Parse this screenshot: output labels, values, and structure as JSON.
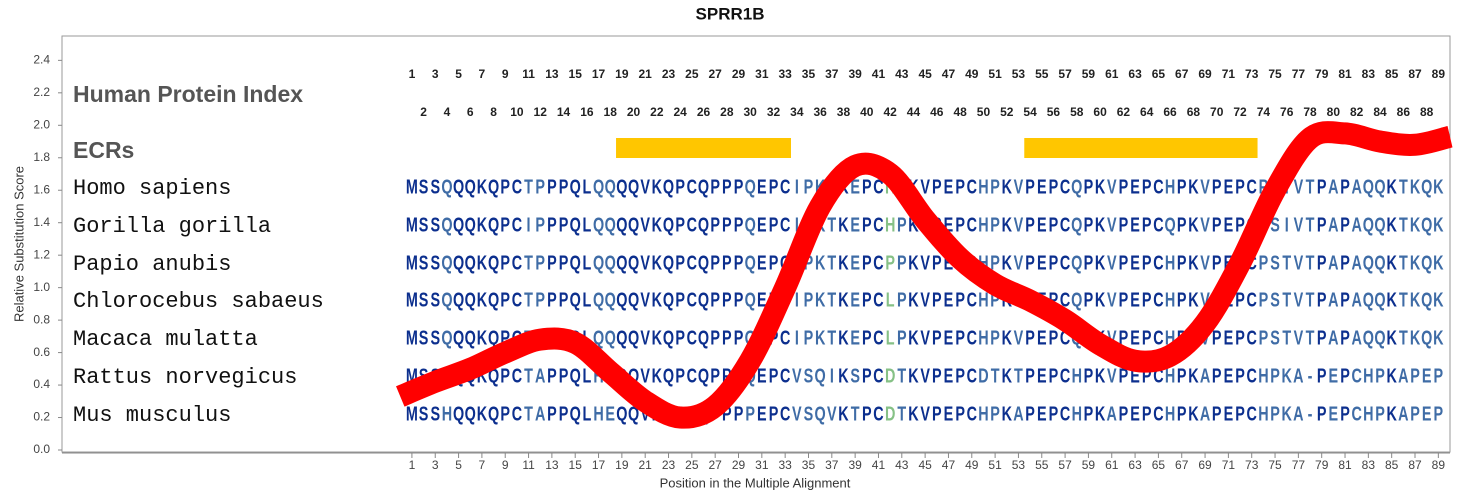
{
  "chart_data": {
    "type": "line",
    "title": "SPRR1B",
    "xlabel": "Position in the Multiple Alignment",
    "ylabel": "Relative Substitution Score",
    "x": [
      0,
      3,
      6,
      9,
      12,
      15,
      18,
      21,
      24,
      27,
      30,
      33,
      36,
      39,
      42,
      45,
      48,
      51,
      54,
      57,
      60,
      63,
      66,
      69,
      72,
      75,
      78,
      81,
      84,
      87,
      90
    ],
    "values": [
      0.33,
      0.42,
      0.5,
      0.6,
      0.68,
      0.66,
      0.48,
      0.3,
      0.2,
      0.27,
      0.55,
      1.0,
      1.5,
      1.75,
      1.7,
      1.42,
      1.18,
      1.02,
      0.92,
      0.8,
      0.65,
      0.55,
      0.58,
      0.78,
      1.15,
      1.6,
      1.92,
      1.95,
      1.9,
      1.88,
      1.93
    ],
    "color": "#ff0000",
    "xlim": [
      -29,
      90
    ],
    "ylim": [
      0,
      2.55
    ],
    "xticks": [
      1,
      3,
      5,
      7,
      9,
      11,
      13,
      15,
      17,
      19,
      21,
      23,
      25,
      27,
      29,
      31,
      33,
      35,
      37,
      39,
      41,
      43,
      45,
      47,
      49,
      51,
      53,
      55,
      57,
      59,
      61,
      63,
      65,
      67,
      69,
      71,
      73,
      75,
      77,
      79,
      81,
      83,
      85,
      87,
      89
    ],
    "yticks": [
      {
        "value": 0,
        "label": "0.0"
      },
      0.2,
      0.4,
      0.6,
      0.8,
      {
        "value": 1,
        "label": "1.0"
      },
      1.2,
      1.4,
      1.6,
      1.8,
      {
        "value": 2,
        "label": "2.0"
      },
      2.2,
      2.4
    ],
    "human_protein_index": {
      "label": "Human Protein Index",
      "values": [
        1,
        2,
        3,
        4,
        5,
        6,
        7,
        8,
        9,
        10,
        11,
        12,
        13,
        14,
        15,
        16,
        17,
        18,
        19,
        20,
        21,
        22,
        23,
        24,
        25,
        26,
        27,
        28,
        29,
        30,
        31,
        32,
        33,
        34,
        35,
        36,
        37,
        38,
        39,
        40,
        41,
        42,
        43,
        44,
        45,
        46,
        47,
        48,
        49,
        50,
        51,
        52,
        53,
        54,
        55,
        56,
        57,
        58,
        59,
        60,
        61,
        62,
        63,
        64,
        65,
        66,
        67,
        68,
        69,
        70,
        71,
        72,
        73,
        74,
        75,
        76,
        77,
        78,
        79,
        80,
        81,
        82,
        83,
        84,
        85,
        86,
        87,
        88,
        89
      ]
    },
    "ecrs": {
      "label": "ECRs",
      "ranges": [
        [
          19,
          33
        ],
        [
          54,
          73
        ]
      ],
      "color": "#ffc600"
    },
    "alignment": [
      {
        "name": "Homo sapiens",
        "sequence": "MSSQQQKQPCTPPPQLQQQQVKQPCQPPPQEPCIPKTKEPCHPKVPEPCHPKVPEPCQPKVPEPCHPKVPEPCPSIVTPAPAQQKTKQK"
      },
      {
        "name": "Gorilla gorilla",
        "sequence": "MSSQQQKQPCIPPPQLQQQQVKQPCQPPPQEPCIPKTKEPCHPKVPEPCHPKVPEPCQPKVPEPCQPKVPEPCPSIVTPAPAQQKTKQK"
      },
      {
        "name": "Papio anubis",
        "sequence": "MSSQQQKQPCTPPPQLQQQQVKQPCQPPPQEPCIPKTKEPCPPKVPEPCHPKVPEPCQPKVPEPCHPKVPEPCPSTVTPAPAQQKTKQK"
      },
      {
        "name": "Chlorocebus sabaeus",
        "sequence": "MSSQQQKQPCTPPPQLQQQQVKQPCQPPPQEPCIPKTKEPCLPKVPEPCHPKVPEPCQPKVPEPCHPKVPEPCPSTVTPAPAQQKTKQK"
      },
      {
        "name": "Macaca mulatta",
        "sequence": "MSSQQQKQPCTPPPQLQQQQVKQPCQPPPQEPCIPKTKEPCLPKVPEPCHPKVPEPCQPKVPEPCHPKVPEPCPSTVTPAPAQQKTKQK"
      },
      {
        "name": "Rattus norvegicus",
        "sequence": "MSSHQQKQPCTAPPQLHEQQVKQPCQPPPQEPCVSQIKSPCDTKVPEPCDTKTPEPCHPKVPEPCHPKAPEPCHPKA-PEPCHPKAPEP"
      },
      {
        "name": "Mus musculus",
        "sequence": "MSSHQQKQPCTAPPQLHEQQVKQPCQPPPPEPCVSQVKTPCDTKVPEPCHPKAPEPCHPKAPEPCHPKAPEPCHPKA-PEPCHPKAPEP"
      }
    ],
    "residue_colors": {
      "conserved": "#0c2f8e",
      "variable": "#3f6ca6",
      "highlight": "#86c186"
    },
    "highlight_positions": [
      42
    ]
  }
}
